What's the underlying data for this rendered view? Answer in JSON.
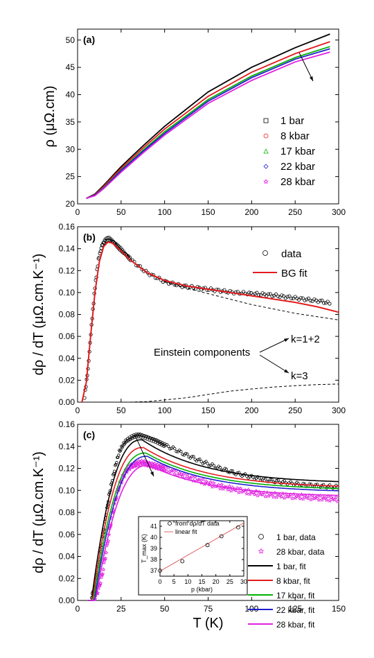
{
  "chart_data": [
    {
      "panel": "(a)",
      "type": "line",
      "xlim": [
        0,
        300
      ],
      "ylim": [
        20,
        52
      ],
      "xticks": [
        0,
        50,
        100,
        150,
        200,
        250,
        300
      ],
      "yticks": [
        20,
        25,
        30,
        35,
        40,
        45,
        50
      ],
      "ylabel": "ρ (μΩ.cm)",
      "xlabel": "",
      "legend_position": "center-right",
      "series": [
        {
          "name": "1 bar",
          "color": "#000000",
          "marker": "square",
          "x": [
            10,
            20,
            30,
            40,
            50,
            75,
            100,
            150,
            200,
            250,
            290
          ],
          "y": [
            21.0,
            21.8,
            23.4,
            25.1,
            26.8,
            30.6,
            34.2,
            40.5,
            45.0,
            48.6,
            51.1
          ]
        },
        {
          "name": "8 kbar",
          "color": "#e41a1c",
          "marker": "circle",
          "x": [
            10,
            20,
            30,
            40,
            50,
            75,
            100,
            150,
            200,
            250,
            290
          ],
          "y": [
            21.0,
            21.7,
            23.2,
            24.9,
            26.5,
            30.2,
            33.7,
            39.7,
            44.1,
            47.5,
            49.7
          ]
        },
        {
          "name": "17 kbar",
          "color": "#00b000",
          "marker": "triangle",
          "x": [
            10,
            20,
            30,
            40,
            50,
            75,
            100,
            150,
            200,
            250,
            290
          ],
          "y": [
            21.0,
            21.6,
            23.0,
            24.6,
            26.2,
            29.8,
            33.2,
            39.1,
            43.4,
            46.8,
            48.8
          ]
        },
        {
          "name": "22 kbar",
          "color": "#1f1fcf",
          "marker": "diamond",
          "x": [
            10,
            20,
            30,
            40,
            50,
            75,
            100,
            150,
            200,
            250,
            290
          ],
          "y": [
            21.0,
            21.6,
            22.9,
            24.5,
            26.1,
            29.6,
            32.9,
            38.8,
            43.1,
            46.5,
            48.4
          ]
        },
        {
          "name": "28 kbar",
          "color": "#e020e0",
          "marker": "star",
          "x": [
            10,
            20,
            30,
            40,
            50,
            75,
            100,
            150,
            200,
            250,
            290
          ],
          "y": [
            21.0,
            21.5,
            22.8,
            24.3,
            25.8,
            29.3,
            32.6,
            38.4,
            42.6,
            46.0,
            47.8
          ]
        }
      ]
    },
    {
      "panel": "(b)",
      "type": "line",
      "xlim": [
        0,
        300
      ],
      "ylim": [
        0,
        0.16
      ],
      "xticks": [
        0,
        50,
        100,
        150,
        200,
        250,
        300
      ],
      "yticks": [
        "0.00",
        "0.02",
        "0.04",
        "0.06",
        "0.08",
        "0.10",
        "0.12",
        "0.14",
        "0.16"
      ],
      "ylabel": "dρ / dT (μΩ.cm.K⁻¹)",
      "xlabel": "",
      "legend_position": "top-right",
      "legend": [
        {
          "name": "data",
          "marker": "open-circle"
        },
        {
          "name": "BG fit",
          "color": "#e41a1c"
        }
      ],
      "data_points": {
        "x": [
          8,
          12,
          16,
          20,
          24,
          28,
          32,
          36,
          40,
          45,
          50,
          60,
          70,
          80,
          90,
          100,
          120,
          140,
          160,
          180,
          200,
          220,
          240,
          260,
          280,
          290
        ],
        "y": [
          0.005,
          0.03,
          0.07,
          0.105,
          0.13,
          0.143,
          0.148,
          0.149,
          0.147,
          0.143,
          0.139,
          0.131,
          0.124,
          0.118,
          0.114,
          0.11,
          0.106,
          0.104,
          0.102,
          0.1,
          0.099,
          0.098,
          0.096,
          0.094,
          0.092,
          0.09
        ]
      },
      "bg_fit": {
        "x": [
          5,
          10,
          15,
          20,
          25,
          30,
          35,
          40,
          50,
          60,
          80,
          100,
          125,
          150,
          175,
          200,
          225,
          250,
          275,
          300
        ],
        "y": [
          0.0,
          0.018,
          0.06,
          0.1,
          0.128,
          0.142,
          0.146,
          0.145,
          0.138,
          0.13,
          0.118,
          0.111,
          0.106,
          0.103,
          0.1,
          0.097,
          0.094,
          0.091,
          0.087,
          0.082
        ]
      },
      "einstein_k12": {
        "x": [
          100,
          125,
          150,
          175,
          200,
          225,
          250,
          275,
          300
        ],
        "y": [
          0.11,
          0.104,
          0.099,
          0.094,
          0.089,
          0.085,
          0.081,
          0.078,
          0.075
        ]
      },
      "einstein_k3": {
        "x": [
          60,
          80,
          100,
          125,
          150,
          175,
          200,
          225,
          250,
          275,
          300
        ],
        "y": [
          0.0,
          0.0005,
          0.002,
          0.004,
          0.007,
          0.01,
          0.012,
          0.0138,
          0.015,
          0.016,
          0.0165
        ]
      },
      "annotations": {
        "einstein": "Einstein components",
        "k12": "k=1+2",
        "k3": "k=3"
      }
    },
    {
      "panel": "(c)",
      "type": "line",
      "xlim": [
        0,
        150
      ],
      "ylim": [
        0,
        0.16
      ],
      "xticks": [
        0,
        25,
        50,
        75,
        100,
        125,
        150
      ],
      "yticks": [
        "0.00",
        "0.02",
        "0.04",
        "0.06",
        "0.08",
        "0.10",
        "0.12",
        "0.14",
        "0.16"
      ],
      "ylabel": "dρ / dT (μΩ.cm.K⁻¹)",
      "xlabel": "T (K)",
      "legend_position": "right",
      "legend": [
        {
          "name": "1 bar, data",
          "marker": "open-circle"
        },
        {
          "name": "28 kbar, data",
          "marker": "star",
          "color": "#e020e0"
        },
        {
          "name": "1 bar, fit",
          "color": "#000000"
        },
        {
          "name": "8 kbar, fit",
          "color": "#e41a1c"
        },
        {
          "name": "17 kbar, fit",
          "color": "#00b000"
        },
        {
          "name": "22 kbar, fit",
          "color": "#1f1fcf"
        },
        {
          "name": "28 kbar, fit",
          "color": "#e020e0"
        }
      ],
      "data_1bar": {
        "x": [
          8,
          10,
          12,
          14,
          16,
          18,
          20,
          22,
          24,
          26,
          28,
          30,
          32,
          34,
          36,
          38,
          40,
          45,
          50,
          55,
          60,
          70,
          80,
          90,
          100,
          110,
          120,
          130,
          140,
          150
        ],
        "y": [
          0.004,
          0.012,
          0.03,
          0.052,
          0.075,
          0.095,
          0.11,
          0.124,
          0.135,
          0.141,
          0.145,
          0.147,
          0.149,
          0.15,
          0.15,
          0.149,
          0.148,
          0.145,
          0.141,
          0.138,
          0.134,
          0.127,
          0.121,
          0.116,
          0.112,
          0.109,
          0.107,
          0.105,
          0.104,
          0.103
        ]
      },
      "data_28kbar": {
        "x": [
          10,
          12,
          14,
          16,
          18,
          20,
          22,
          24,
          26,
          28,
          30,
          32,
          34,
          36,
          38,
          40,
          45,
          50,
          55,
          60,
          70,
          80,
          90,
          100,
          110,
          120,
          130,
          140,
          150
        ],
        "y": [
          0.003,
          0.01,
          0.022,
          0.04,
          0.06,
          0.078,
          0.093,
          0.104,
          0.112,
          0.118,
          0.121,
          0.123,
          0.124,
          0.125,
          0.125,
          0.124,
          0.122,
          0.12,
          0.117,
          0.114,
          0.109,
          0.104,
          0.101,
          0.098,
          0.096,
          0.095,
          0.094,
          0.093,
          0.092
        ]
      },
      "fits": [
        {
          "name": "1 bar, fit",
          "color": "#000000",
          "peak_T": 37,
          "peak": 0.146,
          "end": 0.106
        },
        {
          "name": "8 kbar, fit",
          "color": "#e41a1c",
          "peak_T": 37.8,
          "peak": 0.139,
          "end": 0.102
        },
        {
          "name": "17 kbar, fit",
          "color": "#00b000",
          "peak_T": 39.3,
          "peak": 0.134,
          "end": 0.1
        },
        {
          "name": "22 kbar, fit",
          "color": "#1f1fcf",
          "peak_T": 40.1,
          "peak": 0.131,
          "end": 0.098
        },
        {
          "name": "28 kbar, fit",
          "color": "#e020e0",
          "peak_T": 40.9,
          "peak": 0.123,
          "end": 0.094
        }
      ],
      "inset": {
        "xlabel": "p (kbar)",
        "ylabel": "T_max (K)",
        "xlim": [
          0,
          30
        ],
        "ylim": [
          36.5,
          41.5
        ],
        "xticks": [
          0,
          5,
          10,
          15,
          20,
          25,
          30
        ],
        "yticks": [
          37,
          38,
          39,
          40,
          41
        ],
        "legend": [
          {
            "name": "from dρ/dT data",
            "marker": "open-circle"
          },
          {
            "name": "linear fit",
            "color": "#e06060"
          }
        ],
        "points": {
          "x": [
            0,
            8,
            17,
            22,
            28
          ],
          "y": [
            37.0,
            37.85,
            39.3,
            40.1,
            40.9
          ]
        },
        "fit_line": {
          "x": [
            0,
            30
          ],
          "y": [
            36.95,
            41.3
          ]
        }
      }
    }
  ]
}
